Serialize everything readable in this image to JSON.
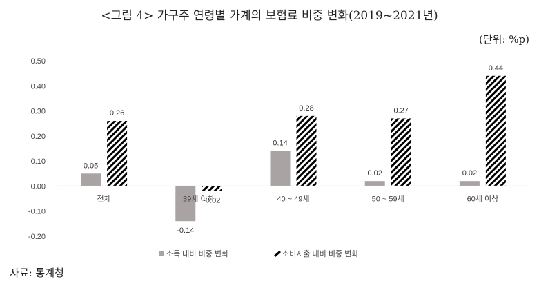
{
  "title": "<그림 4> 가구주 연령별 가계의 보험료 비중 변화(2019~2021년)",
  "unit_label": "(단위: %p)",
  "source": "자료: 통계청",
  "colors": {
    "series1": "#aaa3a3",
    "series2": "#000000",
    "axis": "#d0d0d0",
    "text": "#444444"
  },
  "chart_data": {
    "type": "bar",
    "categories": [
      "전체",
      "39세 이하",
      "40 ~ 49세",
      "50 ~ 59세",
      "60세 이상"
    ],
    "series": [
      {
        "name": "소득 대비 비중 변화",
        "values": [
          0.05,
          -0.14,
          0.14,
          0.02,
          0.02
        ],
        "labels": [
          "0.05",
          "-0.14",
          "0.14",
          "0.02",
          "0.02"
        ]
      },
      {
        "name": "소비지출 대비 비중 변화",
        "values": [
          0.26,
          -0.02,
          0.28,
          0.27,
          0.44
        ],
        "labels": [
          "0.26",
          "-0.02",
          "0.28",
          "0.27",
          "0.44"
        ]
      }
    ],
    "ylim": [
      -0.2,
      0.5
    ],
    "yticks": [
      "-0.20",
      "-0.10",
      "0.00",
      "0.10",
      "0.20",
      "0.30",
      "0.40",
      "0.50"
    ],
    "legend_position": "bottom",
    "grid": false
  }
}
